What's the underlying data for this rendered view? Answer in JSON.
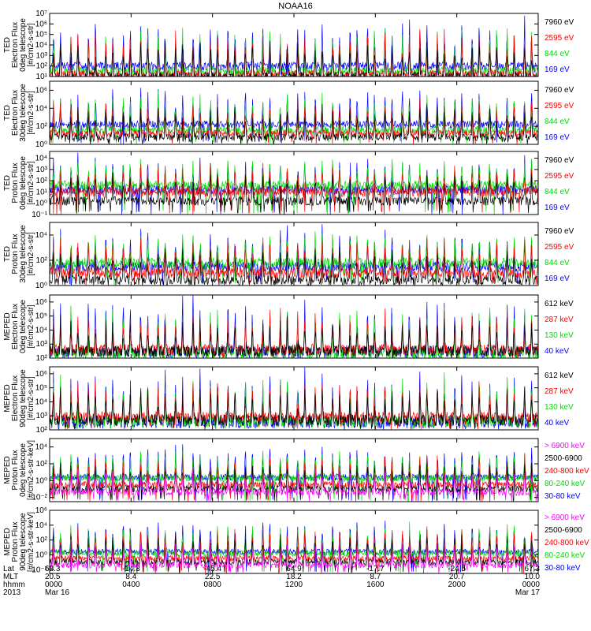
{
  "title": "NOAA16",
  "colors": {
    "blue": "#0000ff",
    "red": "#ff0000",
    "green": "#00dd00",
    "black": "#000000",
    "magenta": "#ff00ff"
  },
  "panels": [
    {
      "ylabel": [
        "TED",
        "Electron Flux",
        "0deg telescope",
        "[#/cm2-s-str]"
      ],
      "ticks": [
        {
          "label": "10¹",
          "e": 1
        },
        {
          "label": "10²",
          "e": 2
        },
        {
          "label": "10³",
          "e": 3
        },
        {
          "label": "10⁴",
          "e": 4
        },
        {
          "label": "10⁵",
          "e": 5
        },
        {
          "label": "10⁶",
          "e": 6
        },
        {
          "label": "10⁷",
          "e": 7
        }
      ],
      "ylog": [
        1,
        7
      ],
      "legend": [
        {
          "text": "7960 eV",
          "color": "black"
        },
        {
          "text": "2595 eV",
          "color": "red"
        },
        {
          "text": "844 eV",
          "color": "green"
        },
        {
          "text": "169 eV",
          "color": "blue"
        }
      ]
    },
    {
      "ylabel": [
        "TED",
        "Electron Flux",
        "30deg telescope",
        "[#/cm2-s-str]"
      ],
      "ticks": [
        {
          "label": "10⁰",
          "e": 0
        },
        {
          "label": "10²",
          "e": 2
        },
        {
          "label": "10⁴",
          "e": 4
        },
        {
          "label": "10⁶",
          "e": 6
        }
      ],
      "ylog": [
        0,
        7
      ],
      "legend": [
        {
          "text": "7960 eV",
          "color": "black"
        },
        {
          "text": "2595 eV",
          "color": "red"
        },
        {
          "text": "844 eV",
          "color": "green"
        },
        {
          "text": "169 eV",
          "color": "blue"
        }
      ]
    },
    {
      "ylabel": [
        "TED",
        "Proton Flux",
        "0deg telescope",
        "[#/cm2-s-str]"
      ],
      "ticks": [
        {
          "label": "10⁻¹",
          "e": -1
        },
        {
          "label": "10⁰",
          "e": 0
        },
        {
          "label": "10¹",
          "e": 1
        },
        {
          "label": "10²",
          "e": 2
        },
        {
          "label": "10³",
          "e": 3
        },
        {
          "label": "10⁴",
          "e": 4
        }
      ],
      "ylog": [
        -1,
        4.6
      ],
      "legend": [
        {
          "text": "7960 eV",
          "color": "black"
        },
        {
          "text": "2595 eV",
          "color": "red"
        },
        {
          "text": "844 eV",
          "color": "green"
        },
        {
          "text": "169 eV",
          "color": "blue"
        }
      ]
    },
    {
      "ylabel": [
        "TED",
        "Proton Flux",
        "30deg telescope",
        "[#/cm2-s-str]"
      ],
      "ticks": [
        {
          "label": "10⁰",
          "e": 0
        },
        {
          "label": "10²",
          "e": 2
        },
        {
          "label": "10⁴",
          "e": 4
        }
      ],
      "ylog": [
        0,
        5
      ],
      "legend": [
        {
          "text": "7960 eV",
          "color": "black"
        },
        {
          "text": "2595 eV",
          "color": "red"
        },
        {
          "text": "844 eV",
          "color": "green"
        },
        {
          "text": "169 eV",
          "color": "blue"
        }
      ]
    },
    {
      "ylabel": [
        "MEPED",
        "Electron Flux",
        "0deg telescope",
        "[#/cm2-s-str]"
      ],
      "ticks": [
        {
          "label": "10²",
          "e": 2
        },
        {
          "label": "10³",
          "e": 3
        },
        {
          "label": "10⁴",
          "e": 4
        },
        {
          "label": "10⁵",
          "e": 5
        },
        {
          "label": "10⁶",
          "e": 6
        }
      ],
      "ylog": [
        2,
        6.5
      ],
      "legend": [
        {
          "text": "612 keV",
          "color": "black"
        },
        {
          "text": "287 keV",
          "color": "red"
        },
        {
          "text": "130 keV",
          "color": "green"
        },
        {
          "text": "40 keV",
          "color": "blue"
        }
      ]
    },
    {
      "ylabel": [
        "MEPED",
        "Electron Flux",
        "90deg telescope",
        "[#/cm2-s-str]"
      ],
      "ticks": [
        {
          "label": "10²",
          "e": 2
        },
        {
          "label": "10³",
          "e": 3
        },
        {
          "label": "10⁴",
          "e": 4
        },
        {
          "label": "10⁵",
          "e": 5
        },
        {
          "label": "10⁶",
          "e": 6
        }
      ],
      "ylog": [
        2,
        6.5
      ],
      "legend": [
        {
          "text": "612 keV",
          "color": "black"
        },
        {
          "text": "287 keV",
          "color": "red"
        },
        {
          "text": "130 keV",
          "color": "green"
        },
        {
          "text": "40 keV",
          "color": "blue"
        }
      ]
    },
    {
      "ylabel": [
        "MEPED",
        "Proton Flux",
        "0deg telescope",
        "[#/cm2-s-str-keV]"
      ],
      "ticks": [
        {
          "label": "10⁻²",
          "e": -2
        },
        {
          "label": "10⁰",
          "e": 0
        },
        {
          "label": "10²",
          "e": 2
        },
        {
          "label": "10⁴",
          "e": 4
        }
      ],
      "ylog": [
        -2.5,
        5
      ],
      "legend": [
        {
          "text": "> 6900 keV",
          "color": "magenta"
        },
        {
          "text": "2500-6900",
          "color": "black"
        },
        {
          "text": "240-800 keV",
          "color": "red"
        },
        {
          "text": "80-240 keV",
          "color": "green"
        },
        {
          "text": "30-80 keV",
          "color": "blue"
        }
      ]
    },
    {
      "ylabel": [
        "MEPED",
        "Proton Flux",
        "90deg telescope",
        "[#/cm2-s-str-keV]"
      ],
      "ticks": [
        {
          "label": "10⁻²",
          "e": -2
        },
        {
          "label": "10⁰",
          "e": 0
        },
        {
          "label": "10²",
          "e": 2
        },
        {
          "label": "10⁴",
          "e": 4
        },
        {
          "label": "10⁶",
          "e": 6
        }
      ],
      "ylog": [
        -2.5,
        6
      ],
      "legend": [
        {
          "text": "> 6900 keV",
          "color": "magenta"
        },
        {
          "text": "2500-6900",
          "color": "black"
        },
        {
          "text": "240-800 keV",
          "color": "red"
        },
        {
          "text": "80-240 keV",
          "color": "green"
        },
        {
          "text": "30-80 keV",
          "color": "blue"
        }
      ]
    }
  ],
  "xaxis": {
    "row_labels": [
      "Lat",
      "MLT",
      "hhmm",
      "2013"
    ],
    "ticks": [
      {
        "lat": "68.3",
        "mlt": "20.5",
        "hhmm": "0000",
        "date": "Mar 16"
      },
      {
        "lat": "-14.3",
        "mlt": "8.4",
        "hhmm": "0400",
        "date": ""
      },
      {
        "lat": "-45.4",
        "mlt": "22.5",
        "hhmm": "0800",
        "date": ""
      },
      {
        "lat": "64.9",
        "mlt": "18.2",
        "hhmm": "1200",
        "date": ""
      },
      {
        "lat": "-17.7",
        "mlt": "8.7",
        "hhmm": "1600",
        "date": ""
      },
      {
        "lat": "-24.5",
        "mlt": "20.7",
        "hhmm": "2000",
        "date": ""
      },
      {
        "lat": "67.3",
        "mlt": "10.0",
        "hhmm": "0000",
        "date": "Mar 17"
      }
    ]
  },
  "chart_data": {
    "type": "line",
    "title": "NOAA16",
    "x_range_hours": [
      0,
      24
    ],
    "xtick_hours": [
      0,
      4,
      8,
      12,
      16,
      20,
      24
    ],
    "yscale": "log",
    "series_by_panel": [
      [
        "7960 eV",
        "2595 eV",
        "844 eV",
        "169 eV"
      ],
      [
        "7960 eV",
        "2595 eV",
        "844 eV",
        "169 eV"
      ],
      [
        "7960 eV",
        "2595 eV",
        "844 eV",
        "169 eV"
      ],
      [
        "7960 eV",
        "2595 eV",
        "844 eV",
        "169 eV"
      ],
      [
        "612 keV",
        "287 keV",
        "130 keV",
        "40 keV"
      ],
      [
        "612 keV",
        "287 keV",
        "130 keV",
        "40 keV"
      ],
      [
        "> 6900 keV",
        "2500-6900",
        "240-800 keV",
        "80-240 keV",
        "30-80 keV"
      ],
      [
        "> 6900 keV",
        "2500-6900",
        "240-800 keV",
        "80-240 keV",
        "30-80 keV"
      ]
    ],
    "approx_baseline_log10": [
      {
        "169 eV": 2.0,
        "844 eV": 1.5,
        "2595 eV": 1.2,
        "7960 eV": 1.0
      },
      {
        "169 eV": 2.2,
        "844 eV": 1.6,
        "2595 eV": 1.2,
        "7960 eV": 0.8
      },
      {
        "169 eV": 1.2,
        "844 eV": 1.6,
        "2595 eV": 1.0,
        "7960 eV": 0.2
      },
      {
        "169 eV": 1.5,
        "844 eV": 1.8,
        "2595 eV": 1.0,
        "7960 eV": 0.4
      },
      {
        "40 keV": 2.4,
        "130 keV": 2.3,
        "287 keV": 2.6,
        "612 keV": 2.5
      },
      {
        "40 keV": 2.5,
        "130 keV": 2.6,
        "287 keV": 2.9,
        "612 keV": 2.7
      },
      {
        "30-80 keV": 0.4,
        "80-240 keV": 0.3,
        "240-800 keV": -0.5,
        "2500-6900": -1.0,
        "> 6900 keV": -1.4
      },
      {
        "30-80 keV": 0.4,
        "80-240 keV": 0.2,
        "240-800 keV": -0.5,
        "2500-6900": -1.0,
        "> 6900 keV": -1.4
      }
    ],
    "approx_peak_log10": [
      6.5,
      6.2,
      4.2,
      4.6,
      6.3,
      6.3,
      4.2,
      5.0
    ],
    "pass_count_per_day": 28
  }
}
